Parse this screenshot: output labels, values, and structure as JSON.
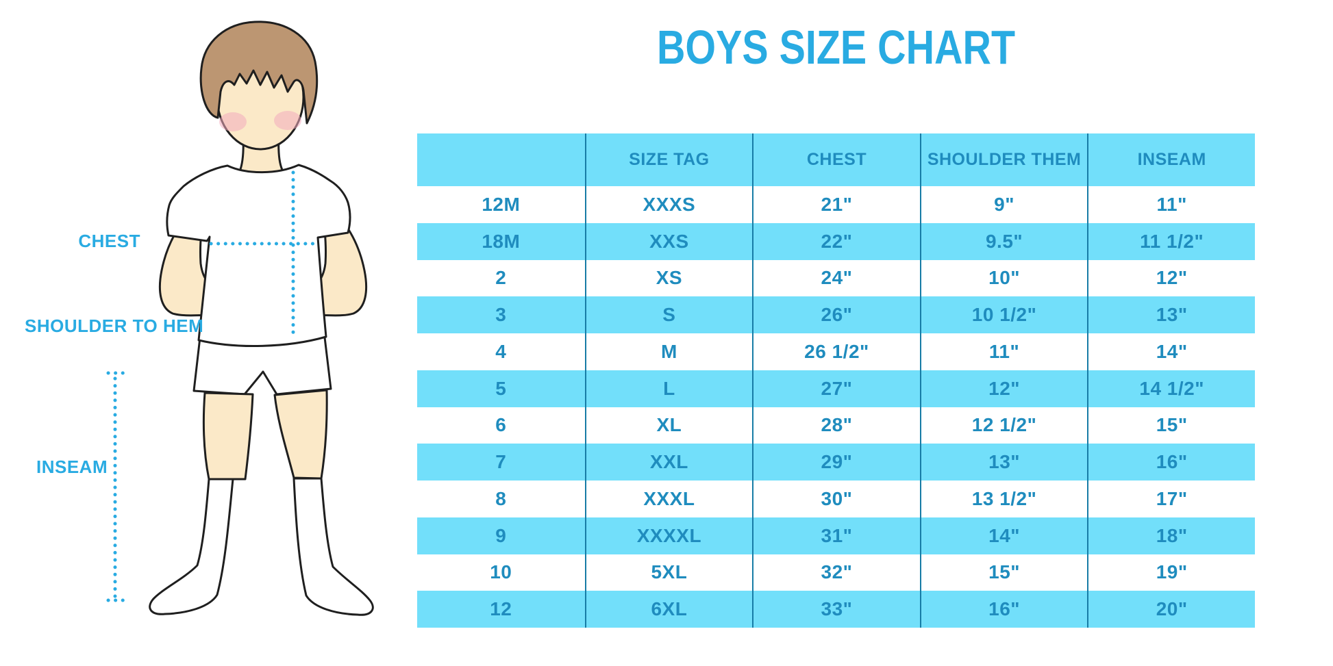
{
  "title": "BOYS SIZE CHART",
  "labels": {
    "chest": "CHEST",
    "shoulder_to_hem": "SHOULDER TO HEM",
    "inseam": "INSEAM"
  },
  "colors": {
    "accent": "#29ABE2",
    "band": "#72DFFA",
    "table_text": "#1F8CBE",
    "divider": "#177CA6",
    "hair": "#BC9672",
    "skin": "#FBE9C8",
    "blush": "#F2ACBE",
    "outline": "#1F1F1F"
  },
  "chart_data": {
    "type": "table",
    "title": "BOYS SIZE CHART",
    "columns": [
      "",
      "SIZE TAG",
      "CHEST",
      "SHOULDER THEM",
      "INSEAM"
    ],
    "rows": [
      [
        "12M",
        "XXXS",
        "21\"",
        "9\"",
        "11\""
      ],
      [
        "18M",
        "XXS",
        "22\"",
        "9.5\"",
        "11 1/2\""
      ],
      [
        "2",
        "XS",
        "24\"",
        "10\"",
        "12\""
      ],
      [
        "3",
        "S",
        "26\"",
        "10 1/2\"",
        "13\""
      ],
      [
        "4",
        "M",
        "26 1/2\"",
        "11\"",
        "14\""
      ],
      [
        "5",
        "L",
        "27\"",
        "12\"",
        "14 1/2\""
      ],
      [
        "6",
        "XL",
        "28\"",
        "12 1/2\"",
        "15\""
      ],
      [
        "7",
        "XXL",
        "29\"",
        "13\"",
        "16\""
      ],
      [
        "8",
        "XXXL",
        "30\"",
        "13 1/2\"",
        "17\""
      ],
      [
        "9",
        "XXXXL",
        "31\"",
        "14\"",
        "18\""
      ],
      [
        "10",
        "5XL",
        "32\"",
        "15\"",
        "19\""
      ],
      [
        "12",
        "6XL",
        "33\"",
        "16\"",
        "20\""
      ]
    ]
  }
}
